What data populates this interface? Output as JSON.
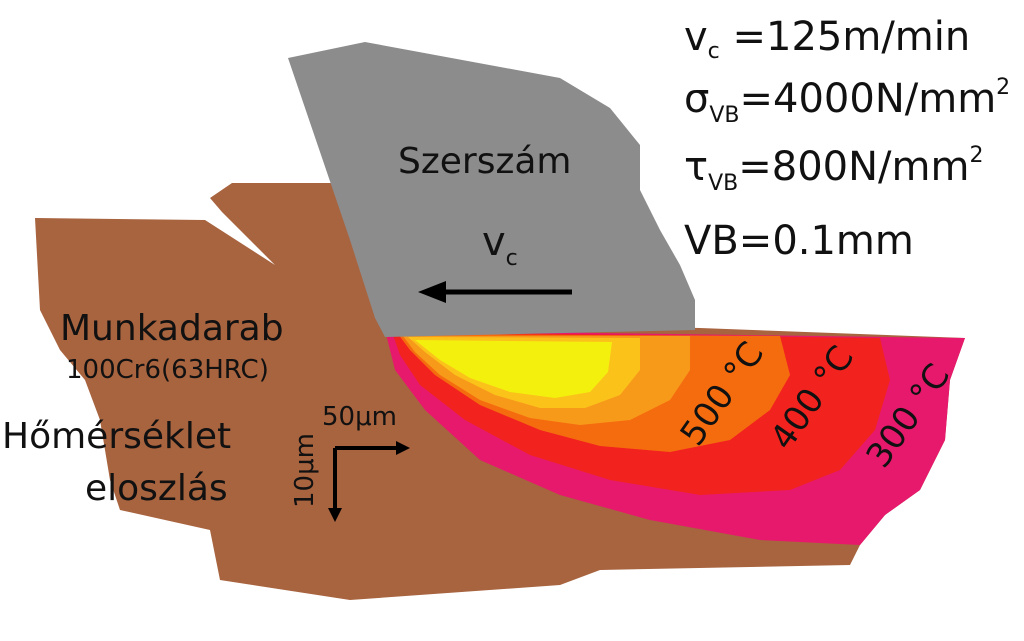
{
  "params": {
    "vc_symbol": "v",
    "vc_sub": "c",
    "vc_value": " =125m/min",
    "sigma_symbol": "σ",
    "sigma_sub": "VB",
    "sigma_value": "=4000N/mm",
    "sigma_sup": "2",
    "tau_symbol": "τ",
    "tau_sub": "VB",
    "tau_value": "=800N/mm",
    "tau_sup": "2",
    "vb_text": "VB=0.1mm"
  },
  "tool": {
    "label": "Szerszám",
    "velocity_symbol": "v",
    "velocity_sub": "c"
  },
  "workpiece": {
    "label": "Munkadarab",
    "material": "100Cr6(63HRC)"
  },
  "temperature": {
    "label_line1": "Hőmérséklet",
    "label_line2": "eloszlás",
    "isotherms": [
      "500 °C",
      "400 °C",
      "300 °C"
    ]
  },
  "scale": {
    "horizontal": "50μm",
    "vertical": "10μm"
  },
  "colors": {
    "workpiece": "#a8633f",
    "tool": "#8c8c8c",
    "zone_300": "#e6196c",
    "zone_400": "#f2221e",
    "zone_500": "#f56c0f",
    "zone_600": "#f79a1a",
    "zone_700": "#fbc21a",
    "zone_hot": "#f4f00e"
  }
}
